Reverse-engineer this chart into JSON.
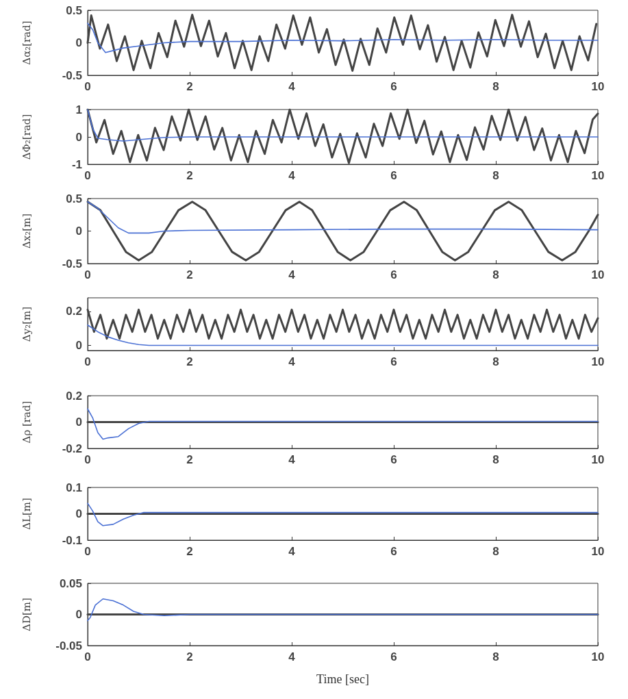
{
  "chart_data": [
    {
      "type": "line",
      "ylabel": "Δα₂[rad]",
      "xlim": [
        0,
        10
      ],
      "xticks": [
        0,
        2,
        4,
        6,
        8,
        10
      ],
      "ylim": [
        -0.5,
        0.5
      ],
      "yticks": [
        -0.5,
        0,
        0.5
      ],
      "grid": false,
      "marker": "none",
      "line_style": "solid",
      "series": [
        {
          "color": "#444444",
          "x": [
            0,
            0.07,
            0.24,
            0.4,
            0.57,
            0.73,
            0.9,
            1.06,
            1.23,
            1.39,
            1.56,
            1.72,
            1.89,
            2.05,
            2.22,
            2.38,
            2.55,
            2.71,
            2.88,
            3.04,
            3.21,
            3.37,
            3.54,
            3.7,
            3.87,
            4.03,
            4.2,
            4.36,
            4.53,
            4.69,
            4.86,
            5.02,
            5.19,
            5.35,
            5.52,
            5.68,
            5.85,
            6.01,
            6.18,
            6.34,
            6.51,
            6.67,
            6.84,
            7.0,
            7.17,
            7.33,
            7.5,
            7.66,
            7.83,
            7.99,
            8.16,
            8.32,
            8.49,
            8.65,
            8.82,
            8.98,
            9.15,
            9.31,
            9.48,
            9.64,
            9.81,
            9.97
          ],
          "values": [
            0,
            0.42,
            -0.09,
            0.28,
            -0.28,
            0.1,
            -0.42,
            0.03,
            -0.39,
            0.15,
            -0.22,
            0.34,
            -0.06,
            0.43,
            -0.05,
            0.34,
            -0.21,
            0.15,
            -0.39,
            0.03,
            -0.42,
            0.1,
            -0.28,
            0.28,
            -0.09,
            0.42,
            -0.03,
            0.39,
            -0.15,
            0.21,
            -0.34,
            0.05,
            -0.43,
            0.06,
            -0.34,
            0.22,
            -0.15,
            0.39,
            -0.03,
            0.42,
            -0.1,
            0.27,
            -0.29,
            0.09,
            -0.42,
            0.03,
            -0.38,
            0.16,
            -0.21,
            0.35,
            -0.05,
            0.43,
            -0.06,
            0.33,
            -0.22,
            0.14,
            -0.39,
            0.03,
            -0.42,
            0.1,
            -0.27,
            0.29
          ]
        },
        {
          "color": "#4a70d4",
          "x": [
            0,
            0.1,
            0.2,
            0.35,
            0.5,
            0.7,
            1,
            1.5,
            2,
            3,
            4,
            5,
            6,
            7,
            8,
            9,
            10
          ],
          "values": [
            0.3,
            0.2,
            0,
            -0.15,
            -0.12,
            -0.08,
            -0.05,
            0,
            0.02,
            0.02,
            0.04,
            0.03,
            0.05,
            0.04,
            0.05,
            0.04,
            0.04
          ]
        }
      ]
    },
    {
      "type": "line",
      "ylabel": "ΔΦ₂[rad]",
      "xlim": [
        0,
        10
      ],
      "xticks": [
        0,
        2,
        4,
        6,
        8,
        10
      ],
      "ylim": [
        -1,
        1
      ],
      "yticks": [
        -1,
        0,
        1
      ],
      "grid": false,
      "marker": "none",
      "line_style": "solid",
      "series": [
        {
          "color": "#444444",
          "x": [
            0,
            0.17,
            0.33,
            0.5,
            0.66,
            0.83,
            0.99,
            1.16,
            1.32,
            1.49,
            1.65,
            1.82,
            1.98,
            2.15,
            2.31,
            2.48,
            2.64,
            2.81,
            2.97,
            3.14,
            3.3,
            3.47,
            3.63,
            3.8,
            3.96,
            4.13,
            4.29,
            4.46,
            4.62,
            4.79,
            4.95,
            5.12,
            5.28,
            5.45,
            5.61,
            5.78,
            5.94,
            6.11,
            6.27,
            6.44,
            6.6,
            6.77,
            6.93,
            7.1,
            7.26,
            7.43,
            7.59,
            7.76,
            7.92,
            8.09,
            8.25,
            8.42,
            8.58,
            8.75,
            8.91,
            9.08,
            9.24,
            9.41,
            9.57,
            9.74,
            9.9,
            10
          ],
          "values": [
            1,
            -0.2,
            0.62,
            -0.62,
            0.22,
            -0.92,
            0.07,
            -0.86,
            0.33,
            -0.48,
            0.75,
            -0.13,
            1,
            -0.11,
            0.75,
            -0.46,
            0.33,
            -0.86,
            0.07,
            -0.92,
            0.22,
            -0.62,
            0.62,
            -0.2,
            1,
            -0.07,
            0.86,
            -0.33,
            0.46,
            -0.75,
            0.11,
            -0.95,
            0.13,
            -0.75,
            0.48,
            -0.33,
            0.86,
            -0.07,
            1,
            -0.22,
            0.59,
            -0.64,
            0.2,
            -0.92,
            0.07,
            -0.84,
            0.35,
            -0.46,
            0.77,
            -0.11,
            1,
            -0.13,
            0.73,
            -0.48,
            0.31,
            -0.86,
            0.07,
            -0.92,
            0.22,
            -0.59,
            0.64,
            0.85
          ]
        },
        {
          "color": "#4a70d4",
          "x": [
            0,
            0.1,
            0.2,
            0.4,
            0.7,
            1,
            1.5,
            2,
            4,
            6,
            8,
            10
          ],
          "values": [
            1,
            0.3,
            -0.05,
            -0.1,
            -0.15,
            -0.1,
            -0.02,
            0,
            0,
            0,
            0,
            0
          ]
        }
      ]
    },
    {
      "type": "line",
      "ylabel": "Δx₂[m]",
      "xlim": [
        0,
        10
      ],
      "xticks": [
        0,
        2,
        4,
        6,
        8,
        10
      ],
      "ylim": [
        -0.5,
        0.5
      ],
      "yticks": [
        -0.5,
        0,
        0.5
      ],
      "grid": false,
      "marker": "none",
      "line_style": "solid",
      "series": [
        {
          "color": "#444444",
          "x": [
            0,
            0.25,
            0.5,
            0.75,
            1.0,
            1.26,
            1.52,
            1.78,
            2.05,
            2.31,
            2.57,
            2.83,
            3.1,
            3.36,
            3.62,
            3.88,
            4.15,
            4.4,
            4.65,
            4.9,
            5.15,
            5.41,
            5.67,
            5.93,
            6.2,
            6.45,
            6.7,
            6.95,
            7.2,
            7.46,
            7.72,
            7.98,
            8.25,
            8.51,
            8.77,
            9.03,
            9.3,
            9.56,
            9.82,
            10
          ],
          "values": [
            0.45,
            0.32,
            0,
            -0.32,
            -0.45,
            -0.32,
            0,
            0.32,
            0.45,
            0.32,
            0,
            -0.32,
            -0.45,
            -0.32,
            0,
            0.32,
            0.45,
            0.32,
            0,
            -0.32,
            -0.45,
            -0.32,
            0,
            0.32,
            0.45,
            0.32,
            0,
            -0.32,
            -0.45,
            -0.32,
            0,
            0.32,
            0.45,
            0.32,
            0,
            -0.32,
            -0.45,
            -0.32,
            0,
            0.25
          ]
        },
        {
          "color": "#4a70d4",
          "x": [
            0,
            0.2,
            0.4,
            0.6,
            0.8,
            1.2,
            1.5,
            2,
            4,
            6,
            8,
            10
          ],
          "values": [
            0.45,
            0.35,
            0.2,
            0.05,
            -0.03,
            -0.03,
            0,
            0.01,
            0.02,
            0.03,
            0.03,
            0.02
          ]
        }
      ]
    },
    {
      "type": "line",
      "ylabel": "Δy₂[m]",
      "xlim": [
        0,
        10
      ],
      "xticks": [
        0,
        2,
        4,
        6,
        8,
        10
      ],
      "ylim": [
        -0.03,
        0.28
      ],
      "yticks": [
        0,
        0.2
      ],
      "grid": false,
      "marker": "none",
      "line_style": "solid",
      "series": [
        {
          "color": "#444444",
          "x": [
            0,
            0.125,
            0.25,
            0.375,
            0.5,
            0.625,
            0.75,
            0.875,
            1,
            1.125,
            1.25,
            1.375,
            1.5,
            1.625,
            1.75,
            1.875,
            2,
            2.125,
            2.25,
            2.375,
            2.5,
            2.625,
            2.75,
            2.875,
            3,
            3.125,
            3.25,
            3.375,
            3.5,
            3.625,
            3.75,
            3.875,
            4,
            4.125,
            4.25,
            4.375,
            4.5,
            4.625,
            4.75,
            4.875,
            5,
            5.125,
            5.25,
            5.375,
            5.5,
            5.625,
            5.75,
            5.875,
            6,
            6.125,
            6.25,
            6.375,
            6.5,
            6.625,
            6.75,
            6.875,
            7,
            7.125,
            7.25,
            7.375,
            7.5,
            7.625,
            7.75,
            7.875,
            8,
            8.125,
            8.25,
            8.375,
            8.5,
            8.625,
            8.75,
            8.875,
            9,
            9.125,
            9.25,
            9.375,
            9.5,
            9.625,
            9.75,
            9.875,
            10
          ],
          "values": [
            0.21,
            0.08,
            0.18,
            0.04,
            0.15,
            0.04,
            0.18,
            0.08,
            0.21,
            0.08,
            0.18,
            0.04,
            0.15,
            0.04,
            0.18,
            0.08,
            0.21,
            0.08,
            0.18,
            0.04,
            0.15,
            0.04,
            0.18,
            0.08,
            0.21,
            0.08,
            0.18,
            0.04,
            0.15,
            0.04,
            0.18,
            0.08,
            0.21,
            0.08,
            0.18,
            0.04,
            0.15,
            0.04,
            0.18,
            0.08,
            0.21,
            0.08,
            0.18,
            0.04,
            0.15,
            0.04,
            0.18,
            0.08,
            0.21,
            0.08,
            0.18,
            0.04,
            0.15,
            0.04,
            0.18,
            0.08,
            0.21,
            0.08,
            0.18,
            0.04,
            0.15,
            0.04,
            0.18,
            0.08,
            0.21,
            0.08,
            0.18,
            0.04,
            0.15,
            0.04,
            0.18,
            0.08,
            0.21,
            0.08,
            0.18,
            0.04,
            0.15,
            0.04,
            0.18,
            0.08,
            0.16
          ]
        },
        {
          "color": "#4a70d4",
          "x": [
            0,
            0.2,
            0.4,
            0.6,
            0.8,
            1.0,
            1.2,
            10
          ],
          "values": [
            0.12,
            0.08,
            0.05,
            0.03,
            0.015,
            0.005,
            0,
            0
          ]
        }
      ]
    },
    {
      "type": "line",
      "ylabel": "Δρ [rad]",
      "xlim": [
        0,
        10
      ],
      "xticks": [
        0,
        2,
        4,
        6,
        8,
        10
      ],
      "ylim": [
        -0.2,
        0.2
      ],
      "yticks": [
        -0.2,
        0,
        0.2
      ],
      "grid": false,
      "marker": "none",
      "line_style": "solid",
      "series": [
        {
          "color": "#444444",
          "x": [
            0,
            10
          ],
          "values": [
            0,
            0
          ]
        },
        {
          "color": "#4a70d4",
          "x": [
            0,
            0.1,
            0.2,
            0.3,
            0.4,
            0.6,
            0.8,
            1.0,
            1.2,
            2,
            10
          ],
          "values": [
            0.1,
            0.03,
            -0.08,
            -0.13,
            -0.12,
            -0.11,
            -0.05,
            -0.01,
            0.005,
            0.005,
            0.005
          ]
        }
      ]
    },
    {
      "type": "line",
      "ylabel": "ΔL[m]",
      "xlim": [
        0,
        10
      ],
      "xticks": [
        0,
        2,
        4,
        6,
        8,
        10
      ],
      "ylim": [
        -0.1,
        0.1
      ],
      "yticks": [
        -0.1,
        0,
        0.1
      ],
      "grid": false,
      "marker": "none",
      "line_style": "solid",
      "series": [
        {
          "color": "#444444",
          "x": [
            0,
            10
          ],
          "values": [
            0,
            0
          ]
        },
        {
          "color": "#4a70d4",
          "x": [
            0,
            0.1,
            0.2,
            0.3,
            0.5,
            0.7,
            0.9,
            1.1,
            2,
            10
          ],
          "values": [
            0.04,
            0.01,
            -0.03,
            -0.045,
            -0.04,
            -0.02,
            -0.005,
            0.005,
            0.005,
            0.005
          ]
        }
      ]
    },
    {
      "type": "line",
      "ylabel": "ΔD[m]",
      "xlabel": "Time [sec]",
      "xlim": [
        0,
        10
      ],
      "xticks": [
        0,
        2,
        4,
        6,
        8,
        10
      ],
      "ylim": [
        -0.05,
        0.05
      ],
      "yticks": [
        -0.05,
        0,
        0.05
      ],
      "grid": false,
      "marker": "none",
      "line_style": "solid",
      "series": [
        {
          "color": "#444444",
          "x": [
            0,
            10
          ],
          "values": [
            0,
            0
          ]
        },
        {
          "color": "#4a70d4",
          "x": [
            0,
            0.05,
            0.15,
            0.3,
            0.5,
            0.7,
            0.9,
            1.1,
            1.5,
            2,
            10
          ],
          "values": [
            -0.01,
            -0.005,
            0.015,
            0.025,
            0.022,
            0.015,
            0.005,
            0,
            -0.002,
            0,
            0
          ]
        }
      ]
    }
  ]
}
